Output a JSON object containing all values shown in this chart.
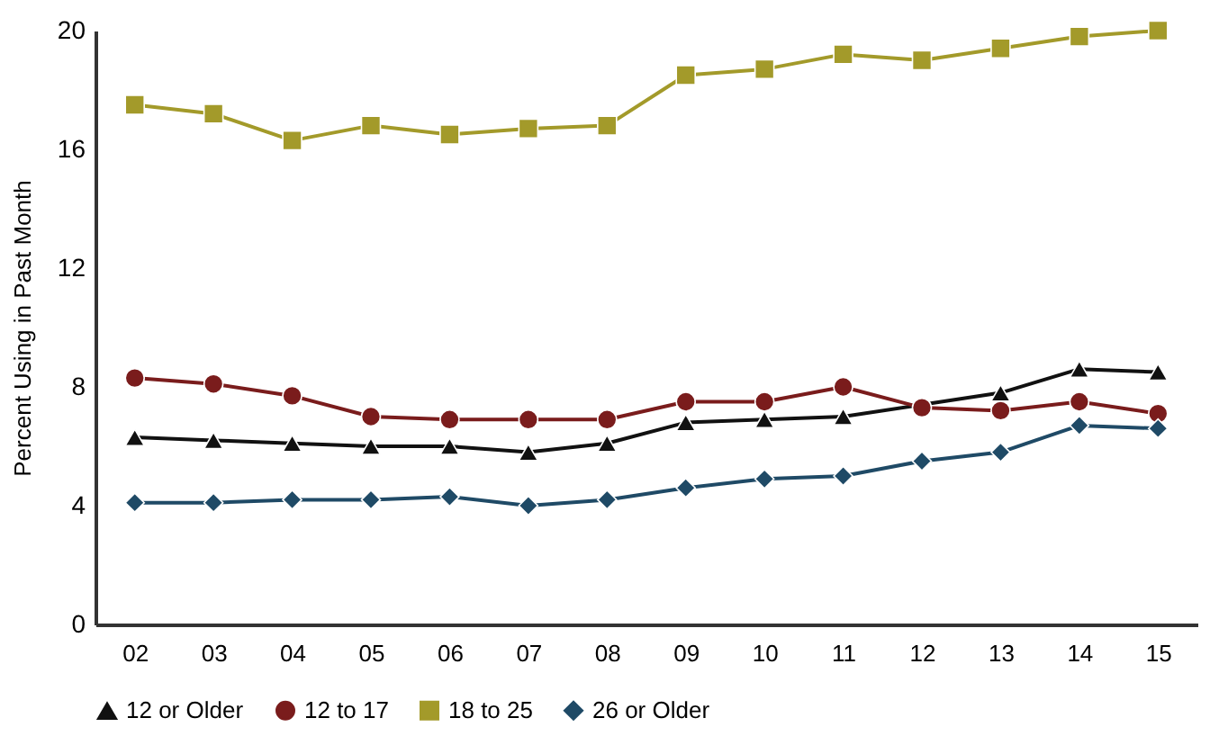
{
  "chart_data": {
    "type": "line",
    "ylabel": "Percent Using in Past Month",
    "categories": [
      "02",
      "03",
      "04",
      "05",
      "06",
      "07",
      "08",
      "09",
      "10",
      "11",
      "12",
      "13",
      "14",
      "15"
    ],
    "series": [
      {
        "name": "12 or Older",
        "color": "#111111",
        "marker": "triangle",
        "values": [
          6.3,
          6.2,
          6.1,
          6.0,
          6.0,
          5.8,
          6.1,
          6.8,
          6.9,
          7.0,
          7.4,
          7.8,
          8.6,
          8.5
        ]
      },
      {
        "name": "12 to 17",
        "color": "#7a1c1c",
        "marker": "circle",
        "values": [
          8.3,
          8.1,
          7.7,
          7.0,
          6.9,
          6.9,
          6.9,
          7.5,
          7.5,
          8.0,
          7.3,
          7.2,
          7.5,
          7.1
        ]
      },
      {
        "name": "18 to 25",
        "color": "#a39a2a",
        "marker": "square",
        "values": [
          17.5,
          17.2,
          16.3,
          16.8,
          16.5,
          16.7,
          16.8,
          18.5,
          18.7,
          19.2,
          19.0,
          19.4,
          19.8,
          20.0
        ]
      },
      {
        "name": "26 or Older",
        "color": "#1f4a66",
        "marker": "diamond",
        "values": [
          4.1,
          4.1,
          4.2,
          4.2,
          4.3,
          4.0,
          4.2,
          4.6,
          4.9,
          5.0,
          5.5,
          5.8,
          6.7,
          6.6
        ]
      }
    ],
    "ylim": [
      0,
      20
    ],
    "yticks": [
      0,
      4,
      8,
      12,
      16,
      20
    ],
    "grid": false,
    "legend": "bottom"
  }
}
